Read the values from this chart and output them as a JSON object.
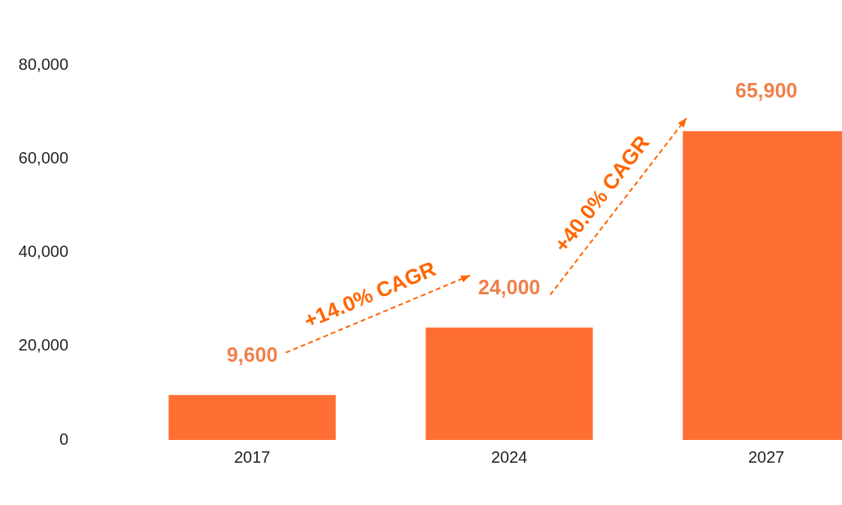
{
  "chart_data": {
    "type": "bar",
    "categories": [
      "2017",
      "2024",
      "2027"
    ],
    "values": [
      9600,
      24000,
      65900
    ],
    "color": "#ff6f33",
    "value_labels": [
      "9,600",
      "24,000",
      "65,900"
    ],
    "annotations": [
      "+14.0% CAGR",
      "+40.0% CAGR"
    ],
    "ylim": [
      0,
      80000
    ],
    "yticks": [
      {
        "value": 0,
        "label": "0"
      },
      {
        "value": 20000,
        "label": "20,000"
      },
      {
        "value": 40000,
        "label": "40,000"
      },
      {
        "value": 60000,
        "label": "60,000"
      },
      {
        "value": 80000,
        "label": "80,000"
      }
    ],
    "grid": false,
    "legend": false
  }
}
